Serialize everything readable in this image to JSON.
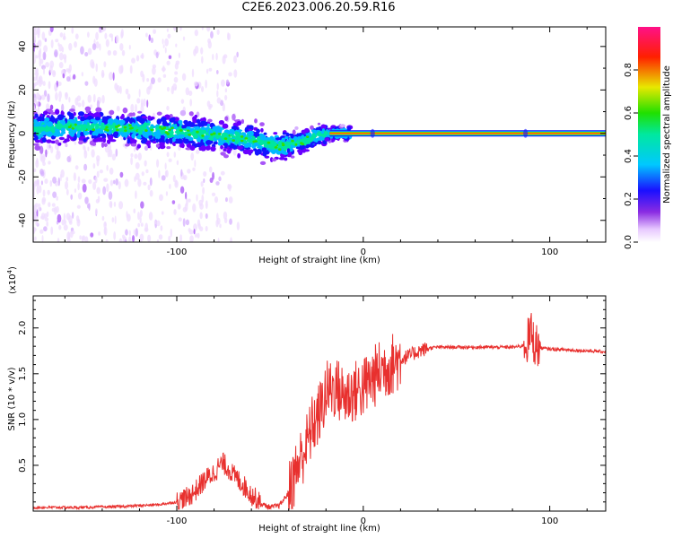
{
  "title": "C2E6.2023.006.20.59.R16",
  "colorbar": {
    "label": "Normalized spectral amplitude",
    "ticks": [
      "0.0",
      "0.2",
      "0.4",
      "0.6",
      "0.8"
    ],
    "tick_values": [
      0.0,
      0.2,
      0.4,
      0.6,
      0.8
    ],
    "range": [
      0,
      1
    ]
  },
  "chart_data": [
    {
      "type": "heatmap",
      "ylabel": "Frequency (Hz)",
      "xlabel": "Height of straight line (km)",
      "xlim": [
        -177,
        130
      ],
      "ylim": [
        -50,
        49
      ],
      "xticks": [
        -100,
        0,
        100
      ],
      "xtick_labels": [
        "-100",
        "0",
        "100"
      ],
      "yticks": [
        -40,
        -20,
        0,
        20,
        40
      ],
      "ytick_labels": [
        "-40",
        "-20",
        "0",
        "20",
        "40"
      ],
      "description_of_data": "Spectral amplitude vs height and Doppler frequency; main echo trace",
      "trace": {
        "x": [
          -177,
          -160,
          -140,
          -120,
          -100,
          -90,
          -80,
          -70,
          -60,
          -50,
          -45,
          -40,
          -35,
          -30,
          -25,
          -20,
          -15,
          -10,
          0,
          10,
          50,
          90,
          130
        ],
        "y": [
          2,
          3,
          3,
          2,
          1,
          0,
          -1,
          -2,
          -3,
          -5,
          -6,
          -5,
          -4,
          -3,
          -1,
          0,
          0,
          0,
          0,
          0,
          0,
          0,
          0
        ]
      }
    },
    {
      "type": "line",
      "ylabel": "SNR (10 * v/v)",
      "y_multiplier": "(x10",
      "y_multiplier_exp": "4",
      "xlabel": "Height of straight line (km)",
      "xlim": [
        -177,
        130
      ],
      "ylim": [
        0,
        2.35
      ],
      "xticks": [
        -100,
        0,
        100
      ],
      "xtick_labels": [
        "-100",
        "0",
        "100"
      ],
      "yticks": [
        0.5,
        1.0,
        1.5,
        2.0
      ],
      "ytick_labels": [
        "0.5",
        "1.0",
        "1.5",
        "2.0"
      ],
      "series": [
        {
          "color": "#e8302e",
          "x": [
            -177,
            -150,
            -130,
            -120,
            -110,
            -100,
            -95,
            -90,
            -85,
            -80,
            -77,
            -75,
            -72,
            -70,
            -65,
            -60,
            -55,
            -50,
            -45,
            -40,
            -35,
            -30,
            -27,
            -25,
            -22,
            -20,
            -15,
            -10,
            -5,
            0,
            5,
            10,
            15,
            20,
            25,
            30,
            35,
            40,
            50,
            60,
            70,
            80,
            85,
            88,
            90,
            92,
            95,
            100,
            110,
            120,
            130
          ],
          "y": [
            0.04,
            0.04,
            0.05,
            0.06,
            0.07,
            0.1,
            0.14,
            0.22,
            0.34,
            0.42,
            0.5,
            0.52,
            0.46,
            0.4,
            0.3,
            0.18,
            0.08,
            0.04,
            0.06,
            0.2,
            0.5,
            0.75,
            0.95,
            1.0,
            1.15,
            1.3,
            1.35,
            1.25,
            1.3,
            1.35,
            1.45,
            1.55,
            1.6,
            1.66,
            1.7,
            1.75,
            1.78,
            1.79,
            1.79,
            1.79,
            1.79,
            1.79,
            1.8,
            1.85,
            1.95,
            1.82,
            1.78,
            1.77,
            1.76,
            1.75,
            1.74
          ]
        }
      ]
    }
  ]
}
